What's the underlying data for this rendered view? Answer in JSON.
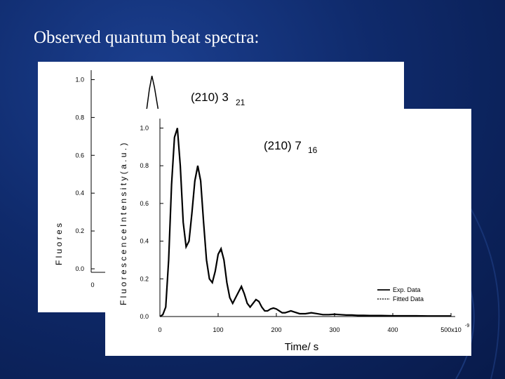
{
  "slide": {
    "title": "Observed quantum beat spectra:"
  },
  "colors": {
    "background": "#0f2a6b",
    "panel": "#ffffff",
    "ink": "#000000"
  },
  "chart_data": [
    {
      "type": "line",
      "title": "(210) 3",
      "title_subscript": "21",
      "ylabel": "F l u o r e s",
      "ylim": [
        0,
        1.05
      ],
      "yticks": [
        0.0,
        0.2,
        0.4,
        0.6,
        0.8,
        1.0
      ],
      "ytick_labels": [
        "0.0",
        "0.2",
        "0.4",
        "0.6",
        "0.8",
        "1.0"
      ],
      "xtick_labels": [
        "0"
      ],
      "series": [
        {
          "values_note": "partially hidden",
          "x": [
            -8,
            -4,
            0,
            4,
            8,
            12,
            16,
            20,
            24
          ],
          "y": [
            0.78,
            0.85,
            0.95,
            1.02,
            0.96,
            0.88,
            0.8,
            0.78,
            0.78
          ]
        }
      ]
    },
    {
      "type": "line",
      "title": "(210) 7",
      "title_subscript": "16",
      "xlabel": "Time/ s",
      "ylabel": "F l u o r e s c e n c e   I n t e n s i t y  ( a . u . )",
      "xlim": [
        0,
        500
      ],
      "ylim": [
        0,
        1.05
      ],
      "xticks": [
        0,
        100,
        200,
        300,
        400,
        500
      ],
      "xtick_labels": [
        "0",
        "100",
        "200",
        "300",
        "400",
        "500x10"
      ],
      "x_exponent": "-9",
      "yticks": [
        0.0,
        0.2,
        0.4,
        0.6,
        0.8,
        1.0
      ],
      "ytick_labels": [
        "0.0",
        "0.2",
        "0.4",
        "0.6",
        "0.8",
        "1.0"
      ],
      "legend": {
        "position": "bottom-right",
        "entries": [
          "Exp. Data",
          "Fitted Data"
        ]
      },
      "series": [
        {
          "name": "Exp. Data",
          "x": [
            0,
            5,
            10,
            15,
            20,
            25,
            30,
            35,
            40,
            45,
            50,
            55,
            60,
            65,
            70,
            75,
            80,
            85,
            90,
            95,
            100,
            105,
            110,
            115,
            120,
            125,
            130,
            135,
            140,
            145,
            150,
            155,
            160,
            165,
            170,
            175,
            180,
            185,
            190,
            195,
            200,
            205,
            210,
            215,
            220,
            225,
            230,
            240,
            250,
            260,
            270,
            280,
            290,
            300,
            310,
            320,
            330,
            340,
            350,
            360,
            380,
            400,
            420,
            440,
            460,
            480,
            500
          ],
          "y": [
            0.0,
            0.01,
            0.05,
            0.3,
            0.7,
            0.95,
            1.0,
            0.8,
            0.5,
            0.37,
            0.4,
            0.55,
            0.72,
            0.8,
            0.72,
            0.5,
            0.3,
            0.2,
            0.18,
            0.24,
            0.33,
            0.36,
            0.3,
            0.18,
            0.1,
            0.07,
            0.1,
            0.13,
            0.16,
            0.12,
            0.07,
            0.05,
            0.07,
            0.09,
            0.08,
            0.05,
            0.03,
            0.03,
            0.04,
            0.045,
            0.04,
            0.03,
            0.02,
            0.02,
            0.025,
            0.03,
            0.025,
            0.015,
            0.015,
            0.02,
            0.015,
            0.01,
            0.01,
            0.012,
            0.01,
            0.008,
            0.008,
            0.006,
            0.006,
            0.005,
            0.005,
            0.004,
            0.004,
            0.004,
            0.003,
            0.003,
            0.003
          ]
        },
        {
          "name": "Fitted Data",
          "x": [
            0,
            5,
            10,
            15,
            20,
            25,
            30,
            35,
            40,
            45,
            50,
            55,
            60,
            65,
            70,
            75,
            80,
            85,
            90,
            95,
            100,
            105,
            110,
            115,
            120,
            125,
            130,
            135,
            140,
            145,
            150,
            155,
            160,
            165,
            170,
            175,
            180,
            185,
            190,
            195,
            200,
            205,
            210,
            215,
            220,
            225,
            230,
            240,
            250,
            260,
            270,
            280,
            290,
            300,
            310,
            320,
            330,
            340,
            350,
            360,
            380,
            400,
            420,
            440,
            460,
            480,
            500
          ],
          "y": [
            0.0,
            0.01,
            0.05,
            0.31,
            0.71,
            0.96,
            0.99,
            0.79,
            0.5,
            0.37,
            0.4,
            0.55,
            0.71,
            0.79,
            0.71,
            0.5,
            0.31,
            0.2,
            0.18,
            0.24,
            0.33,
            0.35,
            0.3,
            0.18,
            0.1,
            0.07,
            0.1,
            0.13,
            0.15,
            0.12,
            0.07,
            0.05,
            0.07,
            0.09,
            0.08,
            0.05,
            0.03,
            0.03,
            0.04,
            0.045,
            0.04,
            0.03,
            0.02,
            0.02,
            0.025,
            0.03,
            0.025,
            0.015,
            0.015,
            0.02,
            0.015,
            0.01,
            0.01,
            0.012,
            0.01,
            0.008,
            0.008,
            0.006,
            0.006,
            0.005,
            0.005,
            0.004,
            0.004,
            0.004,
            0.003,
            0.003,
            0.003
          ]
        }
      ]
    }
  ]
}
